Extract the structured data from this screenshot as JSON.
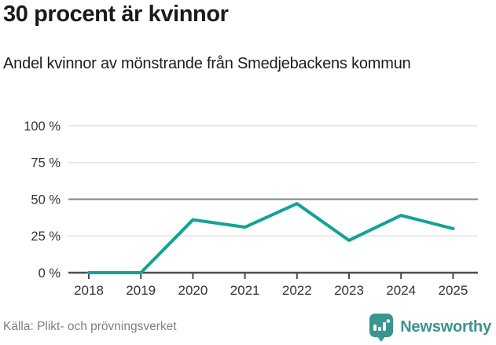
{
  "header": {
    "title": "30 procent är kvinnor",
    "subtitle": "Andel kvinnor av mönstrande från Smedjebackens kommun"
  },
  "chart_data": {
    "type": "line",
    "title": "30 procent är kvinnor",
    "subtitle": "Andel kvinnor av mönstrande från Smedjebackens kommun",
    "categories": [
      "2018",
      "2019",
      "2020",
      "2021",
      "2022",
      "2023",
      "2024",
      "2025"
    ],
    "series": [
      {
        "name": "Andel kvinnor av mönstrande",
        "values": [
          0,
          0,
          36,
          31,
          47,
          22,
          39,
          30
        ]
      }
    ],
    "unit": "%",
    "ylim": [
      0,
      100
    ],
    "yticks": [
      0,
      25,
      50,
      75,
      100
    ],
    "ytick_labels": [
      "0 %",
      "25 %",
      "50 %",
      "75 %",
      "100 %"
    ],
    "grid": "horizontal",
    "emphasized_gridline": 50,
    "legend": "none",
    "line_color": "#12a296"
  },
  "footer": {
    "source": "Källa: Plikt- och prövningsverket",
    "brand": "Newsworthy",
    "logo_icon": "bar-chart-speech-bubble-icon"
  },
  "colors": {
    "line": "#12a296",
    "axis": "#4d4d4d",
    "gridline": "#e3e3e3",
    "gridline_mid": "#858585",
    "title_text": "#1a1a1a",
    "tick_label": "#333333",
    "source_text": "#7f7f7f",
    "brand": "#3a958e"
  }
}
